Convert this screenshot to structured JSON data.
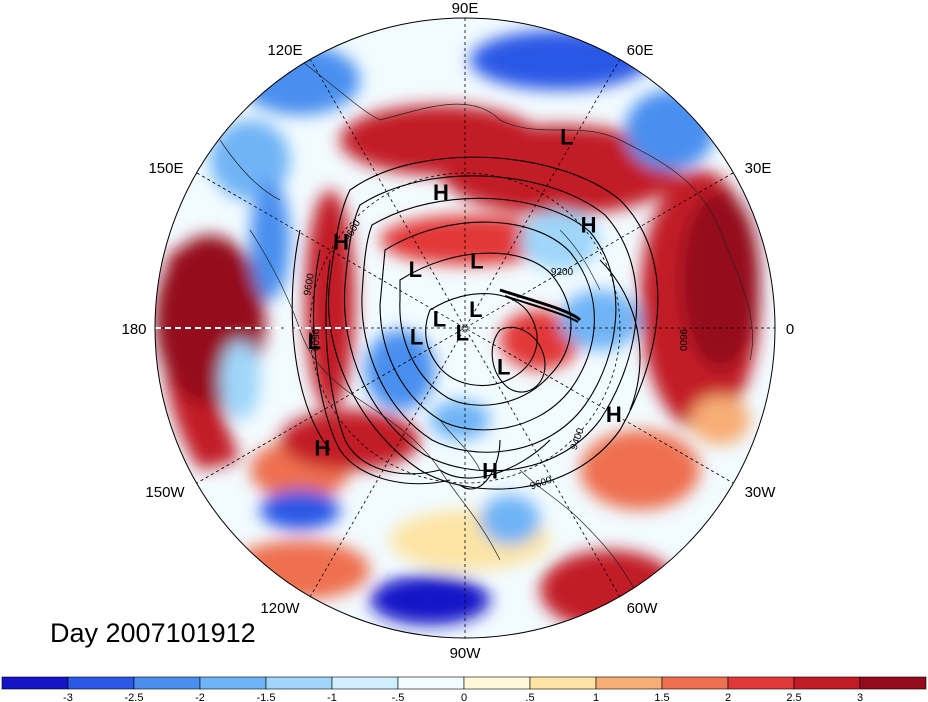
{
  "map": {
    "date_label": "Day 2007101912",
    "projection": "north-polar-stereographic",
    "longitude_labels": [
      "90E",
      "60E",
      "30E",
      "0",
      "30W",
      "60W",
      "90W",
      "120W",
      "150W",
      "180",
      "150E",
      "120E"
    ],
    "pressure_systems": [
      {
        "type": "H",
        "lon": 100,
        "lat": 42
      },
      {
        "type": "L",
        "lon": 62,
        "lat": 20
      },
      {
        "type": "H",
        "lon": 40,
        "lat": 35
      },
      {
        "type": "H",
        "lon": 145,
        "lat": 38
      },
      {
        "type": "L",
        "lon": 130,
        "lat": 62
      },
      {
        "type": "L",
        "lon": 80,
        "lat": 65
      },
      {
        "type": "L",
        "lon": 160,
        "lat": 80
      },
      {
        "type": "L",
        "lon": 60,
        "lat": 82
      },
      {
        "type": "L",
        "lon": -170,
        "lat": 72
      },
      {
        "type": "L",
        "lon": -120,
        "lat": 88
      },
      {
        "type": "L",
        "lon": -45,
        "lat": 70
      },
      {
        "type": "L",
        "lon": -175,
        "lat": 38
      },
      {
        "type": "H",
        "lon": -30,
        "lat": 32
      },
      {
        "type": "H",
        "lon": -140,
        "lat": 28
      },
      {
        "type": "H",
        "lon": -80,
        "lat": 40
      }
    ],
    "contour_labels": [
      "9200",
      "9600",
      "9500",
      "9600",
      "9400",
      "9600",
      "9600"
    ]
  },
  "colorbar": {
    "tick_labels": [
      "-3",
      "-2.5",
      "-2",
      "-1.5",
      "-1",
      "-.5",
      "0",
      ".5",
      "1",
      "1.5",
      "2",
      "2.5",
      "3"
    ],
    "colors": [
      "#1414c8",
      "#2b58e6",
      "#4a8fef",
      "#6fb4f6",
      "#9fd6fa",
      "#d0eefd",
      "#f2fbff",
      "#fff9da",
      "#fde4a4",
      "#f7ad76",
      "#ee7050",
      "#e23838",
      "#c21a26",
      "#950a1c"
    ]
  }
}
